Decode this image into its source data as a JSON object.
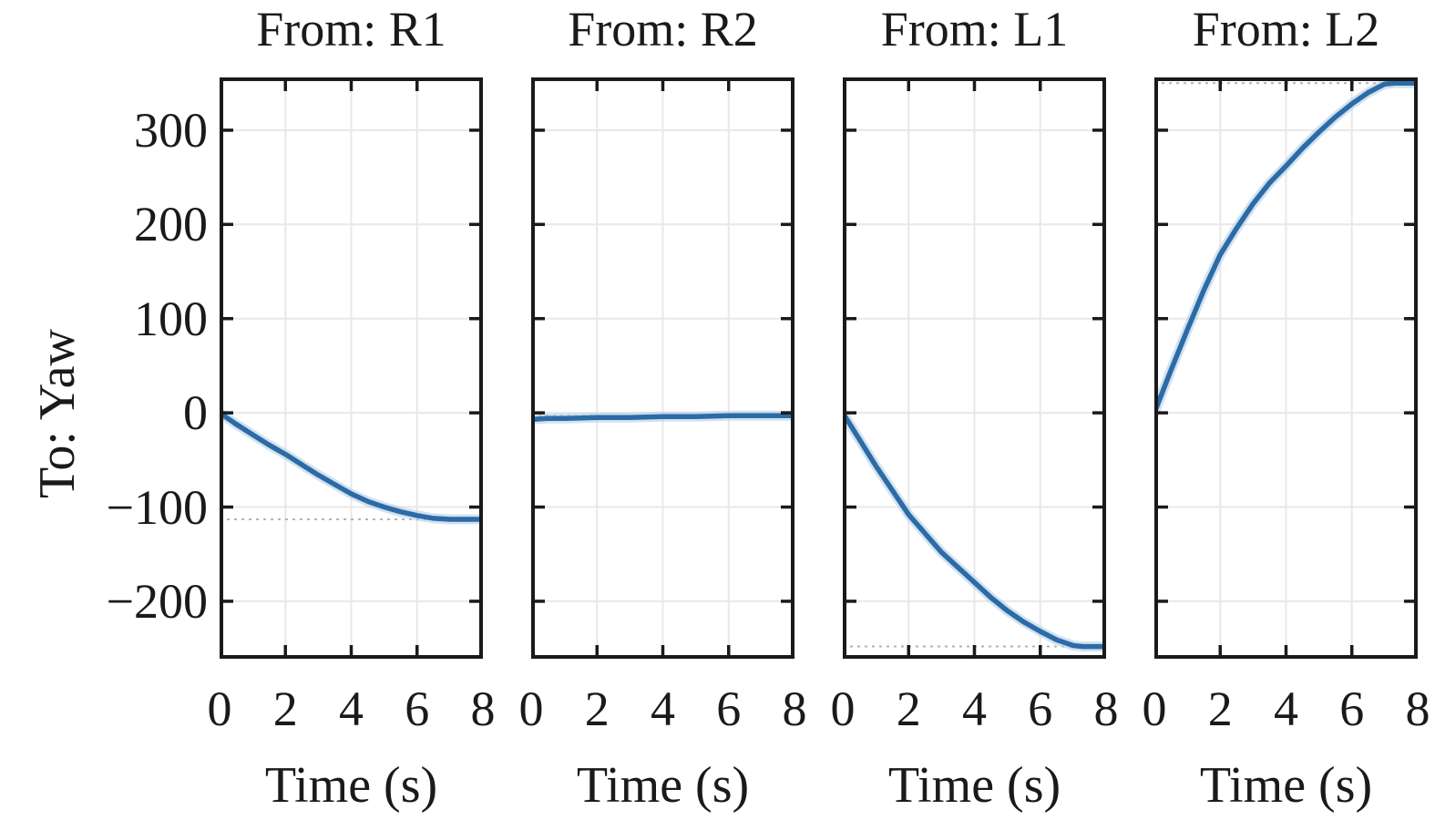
{
  "figure": {
    "background": "#ffffff",
    "frame_color": "#1a1a1a",
    "grid_color": "#e8e8e8",
    "reference_line_color": "#b3b3b3",
    "line_color": "#2d6ba6",
    "line_halo_color": "#a9cce6"
  },
  "chart_data": {
    "type": "line",
    "layout": "1x4 subplots, shared y-axis, grid on, no legend",
    "title": "",
    "xlabel": "Time (s)",
    "ylabel": "To: Yaw",
    "xlim": [
      0,
      8
    ],
    "ylim": [
      -261,
      356
    ],
    "xticks": [
      0,
      2,
      4,
      6,
      8
    ],
    "yticks": [
      300,
      200,
      100,
      0,
      -100,
      -200
    ],
    "ytick_labels": [
      "300",
      "200",
      "100",
      "0",
      "−100",
      "−200"
    ],
    "subplots": [
      {
        "title": "From: R1",
        "steady_state": -113,
        "points": [
          [
            0,
            0
          ],
          [
            0.5,
            -12
          ],
          [
            1,
            -23
          ],
          [
            1.5,
            -34
          ],
          [
            2,
            -44
          ],
          [
            2.5,
            -55
          ],
          [
            3,
            -66
          ],
          [
            3.5,
            -76
          ],
          [
            4,
            -86
          ],
          [
            4.5,
            -94
          ],
          [
            5,
            -100
          ],
          [
            5.5,
            -105
          ],
          [
            6,
            -109
          ],
          [
            6.5,
            -112
          ],
          [
            7,
            -113
          ],
          [
            7.5,
            -113
          ],
          [
            8,
            -113
          ]
        ]
      },
      {
        "title": "From: R2",
        "steady_state": -3,
        "points": [
          [
            0,
            -7
          ],
          [
            0.5,
            -6
          ],
          [
            1,
            -6
          ],
          [
            2,
            -5
          ],
          [
            3,
            -5
          ],
          [
            4,
            -4
          ],
          [
            5,
            -4
          ],
          [
            6,
            -3
          ],
          [
            7,
            -3
          ],
          [
            8,
            -3
          ]
        ]
      },
      {
        "title": "From: L1",
        "steady_state": -248,
        "points": [
          [
            0,
            0
          ],
          [
            0.5,
            -28
          ],
          [
            1,
            -56
          ],
          [
            1.5,
            -82
          ],
          [
            2,
            -108
          ],
          [
            2.5,
            -128
          ],
          [
            3,
            -148
          ],
          [
            3.5,
            -164
          ],
          [
            4,
            -180
          ],
          [
            4.5,
            -196
          ],
          [
            5,
            -210
          ],
          [
            5.5,
            -222
          ],
          [
            6,
            -232
          ],
          [
            6.5,
            -241
          ],
          [
            7,
            -247
          ],
          [
            7.3,
            -248
          ],
          [
            8,
            -248
          ]
        ]
      },
      {
        "title": "From: L2",
        "steady_state": 350,
        "points": [
          [
            0,
            0
          ],
          [
            0.5,
            45
          ],
          [
            1,
            88
          ],
          [
            1.5,
            130
          ],
          [
            2,
            168
          ],
          [
            2.5,
            196
          ],
          [
            3,
            222
          ],
          [
            3.5,
            244
          ],
          [
            4,
            262
          ],
          [
            4.5,
            281
          ],
          [
            5,
            298
          ],
          [
            5.5,
            314
          ],
          [
            6,
            328
          ],
          [
            6.5,
            340
          ],
          [
            7,
            349
          ],
          [
            7.3,
            350
          ],
          [
            8,
            350
          ]
        ]
      }
    ]
  }
}
